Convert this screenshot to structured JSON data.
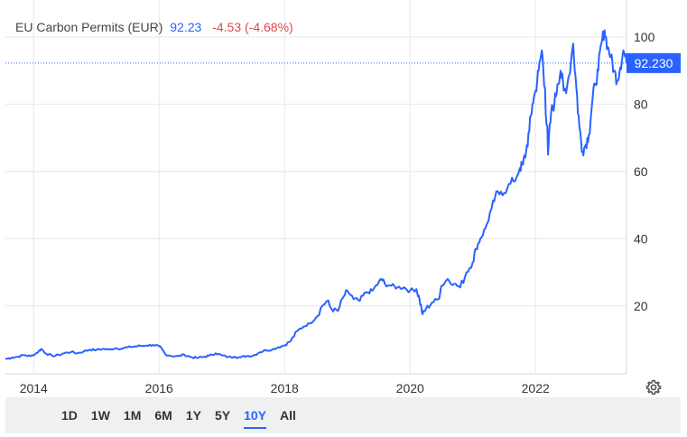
{
  "header": {
    "title": "EU Carbon Permits (EUR)",
    "price": "92.23",
    "change": "-4.53 (-4.68%)"
  },
  "price_tag": "92.230",
  "range_buttons": [
    {
      "label": "1D",
      "active": false
    },
    {
      "label": "1W",
      "active": false
    },
    {
      "label": "1M",
      "active": false
    },
    {
      "label": "6M",
      "active": false
    },
    {
      "label": "1Y",
      "active": false
    },
    {
      "label": "5Y",
      "active": false
    },
    {
      "label": "10Y",
      "active": true
    },
    {
      "label": "All",
      "active": false
    }
  ],
  "colors": {
    "line": "#2962ff",
    "grid": "#e6e8eb",
    "tag_bg": "#2962ff",
    "change": "#e0464b",
    "axis_text": "#333333"
  },
  "icons": {
    "settings": "gear-icon"
  },
  "chart_data": {
    "type": "line",
    "title": "EU Carbon Permits (EUR)",
    "xlabel": "",
    "ylabel": "",
    "x_ticks": [
      "2014",
      "2016",
      "2018",
      "2020",
      "2022"
    ],
    "x_tick_values": [
      2014,
      2016,
      2018,
      2020,
      2022
    ],
    "y_ticks": [
      20,
      40,
      60,
      80,
      100
    ],
    "xlim": [
      2013.55,
      2023.45
    ],
    "ylim": [
      -0.2,
      111
    ],
    "y_axis_side": "right",
    "grid": true,
    "last_value": 92.23,
    "series": [
      {
        "values": [
          [
            2013.55,
            4.2
          ],
          [
            2013.65,
            4.6
          ],
          [
            2013.75,
            4.9
          ],
          [
            2013.85,
            5.4
          ],
          [
            2013.95,
            5.0
          ],
          [
            2014.05,
            6.0
          ],
          [
            2014.12,
            7.2
          ],
          [
            2014.2,
            5.8
          ],
          [
            2014.3,
            5.1
          ],
          [
            2014.4,
            5.4
          ],
          [
            2014.5,
            6.0
          ],
          [
            2014.6,
            6.3
          ],
          [
            2014.7,
            5.9
          ],
          [
            2014.8,
            6.5
          ],
          [
            2014.9,
            7.0
          ],
          [
            2015.0,
            6.9
          ],
          [
            2015.1,
            7.2
          ],
          [
            2015.2,
            7.0
          ],
          [
            2015.3,
            7.4
          ],
          [
            2015.4,
            7.3
          ],
          [
            2015.5,
            7.7
          ],
          [
            2015.6,
            7.9
          ],
          [
            2015.7,
            8.1
          ],
          [
            2015.8,
            8.2
          ],
          [
            2015.9,
            8.4
          ],
          [
            2016.0,
            8.0
          ],
          [
            2016.05,
            7.0
          ],
          [
            2016.1,
            5.6
          ],
          [
            2016.2,
            5.1
          ],
          [
            2016.3,
            5.0
          ],
          [
            2016.4,
            5.5
          ],
          [
            2016.5,
            4.8
          ],
          [
            2016.6,
            4.5
          ],
          [
            2016.7,
            4.8
          ],
          [
            2016.8,
            5.2
          ],
          [
            2016.9,
            5.9
          ],
          [
            2017.0,
            5.3
          ],
          [
            2017.1,
            4.8
          ],
          [
            2017.2,
            4.9
          ],
          [
            2017.3,
            4.7
          ],
          [
            2017.4,
            5.1
          ],
          [
            2017.5,
            5.2
          ],
          [
            2017.6,
            6.2
          ],
          [
            2017.7,
            6.8
          ],
          [
            2017.8,
            7.0
          ],
          [
            2017.9,
            7.7
          ],
          [
            2018.0,
            8.3
          ],
          [
            2018.1,
            9.6
          ],
          [
            2018.2,
            12.5
          ],
          [
            2018.3,
            13.8
          ],
          [
            2018.4,
            14.8
          ],
          [
            2018.5,
            16.5
          ],
          [
            2018.6,
            20.0
          ],
          [
            2018.68,
            21.5
          ],
          [
            2018.75,
            19.0
          ],
          [
            2018.85,
            18.5
          ],
          [
            2018.95,
            23.0
          ],
          [
            2019.0,
            24.5
          ],
          [
            2019.1,
            22.0
          ],
          [
            2019.2,
            21.5
          ],
          [
            2019.3,
            24.0
          ],
          [
            2019.4,
            24.5
          ],
          [
            2019.5,
            27.0
          ],
          [
            2019.55,
            28.0
          ],
          [
            2019.6,
            26.5
          ],
          [
            2019.7,
            26.0
          ],
          [
            2019.8,
            25.5
          ],
          [
            2019.9,
            25.5
          ],
          [
            2020.0,
            24.5
          ],
          [
            2020.1,
            25.0
          ],
          [
            2020.15,
            22.0
          ],
          [
            2020.2,
            17.5
          ],
          [
            2020.25,
            19.0
          ],
          [
            2020.35,
            21.0
          ],
          [
            2020.45,
            22.0
          ],
          [
            2020.5,
            26.0
          ],
          [
            2020.6,
            28.0
          ],
          [
            2020.7,
            26.5
          ],
          [
            2020.8,
            25.5
          ],
          [
            2020.9,
            30.0
          ],
          [
            2021.0,
            33.0
          ],
          [
            2021.05,
            37.0
          ],
          [
            2021.12,
            40.0
          ],
          [
            2021.2,
            43.0
          ],
          [
            2021.3,
            49.0
          ],
          [
            2021.35,
            52.0
          ],
          [
            2021.45,
            54.0
          ],
          [
            2021.55,
            55.0
          ],
          [
            2021.65,
            57.0
          ],
          [
            2021.75,
            61.0
          ],
          [
            2021.8,
            62.0
          ],
          [
            2021.85,
            66.0
          ],
          [
            2021.9,
            72.0
          ],
          [
            2021.95,
            80.0
          ],
          [
            2022.0,
            84.0
          ],
          [
            2022.05,
            90.0
          ],
          [
            2022.1,
            96.0
          ],
          [
            2022.15,
            85.0
          ],
          [
            2022.2,
            65.0
          ],
          [
            2022.25,
            78.0
          ],
          [
            2022.3,
            80.0
          ],
          [
            2022.35,
            86.0
          ],
          [
            2022.4,
            90.0
          ],
          [
            2022.45,
            84.0
          ],
          [
            2022.5,
            85.0
          ],
          [
            2022.6,
            98.0
          ],
          [
            2022.65,
            85.0
          ],
          [
            2022.7,
            73.0
          ],
          [
            2022.75,
            66.0
          ],
          [
            2022.8,
            68.0
          ],
          [
            2022.85,
            71.0
          ],
          [
            2022.9,
            80.0
          ],
          [
            2022.95,
            86.0
          ],
          [
            2023.0,
            90.0
          ],
          [
            2023.05,
            98.0
          ],
          [
            2023.1,
            102.0
          ],
          [
            2023.15,
            97.0
          ],
          [
            2023.2,
            94.0
          ],
          [
            2023.25,
            90.0
          ],
          [
            2023.3,
            87.0
          ],
          [
            2023.35,
            91.0
          ],
          [
            2023.4,
            96.0
          ],
          [
            2023.45,
            92.23
          ]
        ]
      }
    ]
  }
}
